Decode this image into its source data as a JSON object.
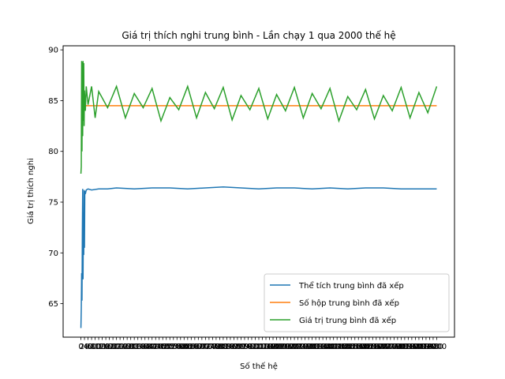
{
  "chart_data": {
    "type": "line",
    "title": "Giá trị thích nghi trung bình - Lần chạy 1 qua 2000 thế hệ",
    "xlabel": "Số thế hệ",
    "ylabel": "Giá trị thích nghi",
    "xlim": [
      -100,
      2100
    ],
    "ylim": [
      61.7,
      90.4
    ],
    "yticks": [
      65,
      70,
      75,
      80,
      85,
      90
    ],
    "xticks_start": 0,
    "xticks_end": 2000,
    "xticks_step": 20,
    "grid": false,
    "legend_position": "lower-right",
    "series": [
      {
        "name": "Thể tích trung bình đã xếp",
        "color": "#1f77b4",
        "points": [
          [
            0,
            62.6
          ],
          [
            2,
            64.5
          ],
          [
            4,
            68.0
          ],
          [
            6,
            65.3
          ],
          [
            8,
            72.0
          ],
          [
            10,
            76.3
          ],
          [
            12,
            67.4
          ],
          [
            14,
            74.0
          ],
          [
            16,
            69.8
          ],
          [
            18,
            76.2
          ],
          [
            20,
            70.5
          ],
          [
            22,
            76.1
          ],
          [
            25,
            75.8
          ],
          [
            30,
            76.2
          ],
          [
            40,
            76.3
          ],
          [
            60,
            76.2
          ],
          [
            100,
            76.3
          ],
          [
            150,
            76.3
          ],
          [
            200,
            76.4
          ],
          [
            300,
            76.3
          ],
          [
            400,
            76.4
          ],
          [
            500,
            76.4
          ],
          [
            600,
            76.3
          ],
          [
            700,
            76.4
          ],
          [
            800,
            76.5
          ],
          [
            900,
            76.4
          ],
          [
            1000,
            76.3
          ],
          [
            1100,
            76.4
          ],
          [
            1200,
            76.4
          ],
          [
            1300,
            76.3
          ],
          [
            1400,
            76.4
          ],
          [
            1500,
            76.3
          ],
          [
            1600,
            76.4
          ],
          [
            1700,
            76.4
          ],
          [
            1800,
            76.3
          ],
          [
            1900,
            76.3
          ],
          [
            2000,
            76.3
          ]
        ]
      },
      {
        "name": "Số hộp trung bình đã xếp",
        "color": "#ff7f0e",
        "points": [
          [
            0,
            84.5
          ],
          [
            2000,
            84.5
          ]
        ]
      },
      {
        "name": "Giá trị trung bình đã xếp",
        "color": "#2ca02c",
        "points": [
          [
            0,
            77.8
          ],
          [
            2,
            78.5
          ],
          [
            4,
            88.9
          ],
          [
            6,
            80.0
          ],
          [
            8,
            88.8
          ],
          [
            10,
            81.5
          ],
          [
            12,
            88.9
          ],
          [
            14,
            83.0
          ],
          [
            16,
            88.7
          ],
          [
            18,
            82.5
          ],
          [
            20,
            86.0
          ],
          [
            25,
            84.0
          ],
          [
            30,
            86.4
          ],
          [
            40,
            84.6
          ],
          [
            60,
            86.4
          ],
          [
            80,
            83.3
          ],
          [
            100,
            85.9
          ],
          [
            150,
            84.3
          ],
          [
            200,
            86.4
          ],
          [
            250,
            83.3
          ],
          [
            300,
            85.7
          ],
          [
            350,
            84.3
          ],
          [
            400,
            86.2
          ],
          [
            450,
            83.0
          ],
          [
            500,
            85.3
          ],
          [
            550,
            84.1
          ],
          [
            600,
            86.4
          ],
          [
            650,
            83.3
          ],
          [
            700,
            85.8
          ],
          [
            750,
            84.2
          ],
          [
            800,
            86.3
          ],
          [
            850,
            83.1
          ],
          [
            900,
            85.5
          ],
          [
            950,
            84.1
          ],
          [
            1000,
            86.2
          ],
          [
            1050,
            83.2
          ],
          [
            1100,
            85.6
          ],
          [
            1150,
            84.0
          ],
          [
            1200,
            86.3
          ],
          [
            1250,
            83.3
          ],
          [
            1300,
            85.7
          ],
          [
            1350,
            84.2
          ],
          [
            1400,
            86.2
          ],
          [
            1450,
            83.0
          ],
          [
            1500,
            85.4
          ],
          [
            1550,
            84.1
          ],
          [
            1600,
            86.1
          ],
          [
            1650,
            83.2
          ],
          [
            1700,
            85.5
          ],
          [
            1750,
            84.0
          ],
          [
            1800,
            86.3
          ],
          [
            1850,
            83.3
          ],
          [
            1900,
            85.8
          ],
          [
            1950,
            83.8
          ],
          [
            2000,
            86.4
          ]
        ]
      }
    ]
  }
}
